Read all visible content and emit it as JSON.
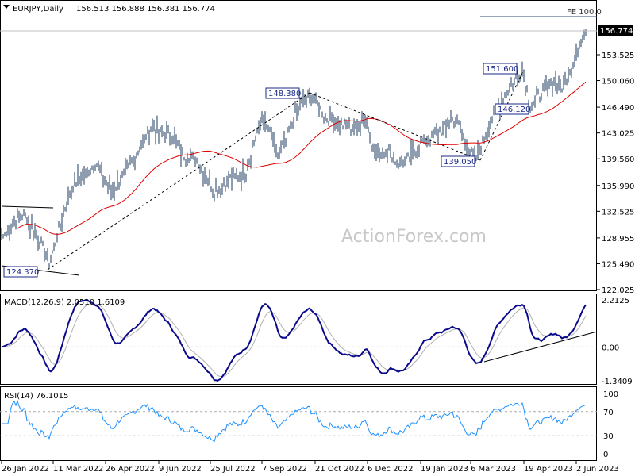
{
  "chart_data": {
    "type": "candlestick-ohlc-bars",
    "symbol_header": "EURJPY,Daily",
    "ohlc_header": "156.513 156.888 156.381 156.774",
    "current_price": "156.774",
    "fe_label": "FE 100.0",
    "watermark": "ActionForex.com",
    "price_axis": {
      "ylim": [
        122.025,
        156.774
      ],
      "ticks": [
        "153.525",
        "150.060",
        "146.490",
        "143.025",
        "139.560",
        "135.990",
        "132.525",
        "128.955",
        "125.490",
        "122.025"
      ]
    },
    "x_ticks": [
      "26 Jan 2022",
      "11 Mar 2022",
      "26 Apr 2022",
      "9 Jun 2022",
      "25 Jul 2022",
      "7 Sep 2022",
      "21 Oct 2022",
      "6 Dec 2022",
      "19 Jan 2023",
      "6 Mar 2023",
      "19 Apr 2023",
      "2 Jun 2023"
    ],
    "annotations": [
      "124.370",
      "148.380",
      "139.050",
      "151.600",
      "146.120"
    ],
    "approx_weekly_close": [
      129,
      130,
      132,
      132,
      130,
      128,
      125.5,
      129,
      133,
      136,
      137,
      138,
      139,
      137,
      135,
      137,
      138,
      140,
      142,
      144,
      143,
      143,
      142,
      140,
      140,
      139,
      137,
      135,
      136,
      137,
      137,
      138,
      142,
      145,
      143,
      140,
      142,
      145,
      147,
      148.2,
      147,
      145,
      145,
      144,
      144,
      143.5,
      145.5,
      141,
      140,
      141,
      139,
      139,
      140,
      142,
      142,
      143,
      143.5,
      145,
      144,
      141,
      139.5,
      142,
      145,
      146.5,
      148.5,
      150,
      151.6,
      146.5,
      148,
      149,
      150,
      149,
      151,
      154.5,
      156.8
    ],
    "macd": {
      "label": "MACD(12,26,9) 2.0510 1.6109",
      "ticks": [
        "2.2125",
        "0.00",
        "-1.3409"
      ],
      "ylim": [
        -1.3409,
        2.2125
      ]
    },
    "rsi": {
      "label": "RSI(14) 76.1015",
      "ticks": [
        "100",
        "70",
        "30",
        "0"
      ],
      "ylim": [
        0,
        100
      ]
    },
    "colors": {
      "bars": "#1e3a5f",
      "ma": "#e00000",
      "macd": "#0a0a8c",
      "signal": "#b0b0b0",
      "rsi": "#1e90ff"
    }
  }
}
